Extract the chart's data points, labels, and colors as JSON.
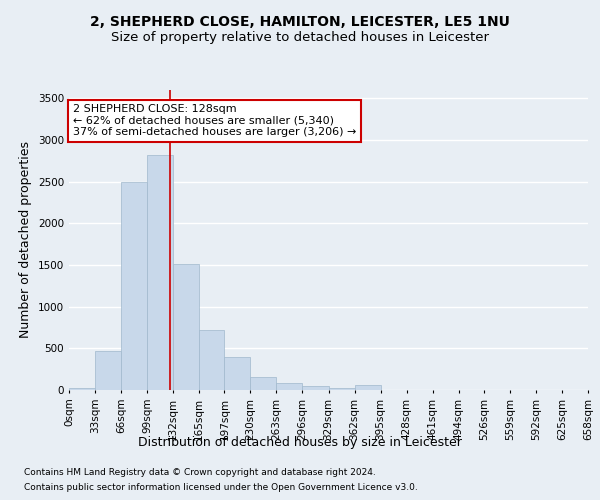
{
  "title_line1": "2, SHEPHERD CLOSE, HAMILTON, LEICESTER, LE5 1NU",
  "title_line2": "Size of property relative to detached houses in Leicester",
  "xlabel": "Distribution of detached houses by size in Leicester",
  "ylabel": "Number of detached properties",
  "footnote1": "Contains HM Land Registry data © Crown copyright and database right 2024.",
  "footnote2": "Contains public sector information licensed under the Open Government Licence v3.0.",
  "bin_edges": [
    0,
    33,
    66,
    99,
    132,
    165,
    197,
    230,
    263,
    296,
    329,
    362,
    395,
    428,
    461,
    494,
    526,
    559,
    592,
    625,
    658
  ],
  "bar_values": [
    20,
    470,
    2500,
    2820,
    1510,
    720,
    400,
    155,
    90,
    45,
    25,
    55,
    0,
    0,
    0,
    0,
    0,
    0,
    0,
    0
  ],
  "bar_color": "#c8d8ea",
  "bar_edge_color": "#a0b8cc",
  "property_size": 128,
  "property_line_color": "#cc0000",
  "annotation_text": "2 SHEPHERD CLOSE: 128sqm\n← 62% of detached houses are smaller (5,340)\n37% of semi-detached houses are larger (3,206) →",
  "annotation_box_color": "#ffffff",
  "annotation_box_edge_color": "#cc0000",
  "ylim": [
    0,
    3600
  ],
  "yticks": [
    0,
    500,
    1000,
    1500,
    2000,
    2500,
    3000,
    3500
  ],
  "background_color": "#e8eef4",
  "plot_background_color": "#e8eef4",
  "grid_color": "#ffffff",
  "title_fontsize": 10,
  "subtitle_fontsize": 9.5,
  "axis_label_fontsize": 9,
  "tick_fontsize": 7.5,
  "annotation_fontsize": 8,
  "footnote_fontsize": 6.5
}
